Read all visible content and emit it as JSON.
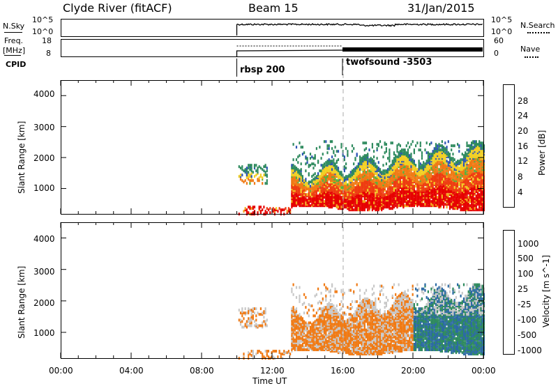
{
  "header": {
    "title": "Clyde River (fitACF)",
    "beam": "Beam 15",
    "date": "31/Jan/2015"
  },
  "strips": {
    "nsky": {
      "label": "N.Sky",
      "right_label": "N.Search",
      "left_ticks": [
        "10^5",
        "10^0"
      ],
      "right_ticks": [
        "10^5",
        "10^0"
      ]
    },
    "freq": {
      "label_line1": "Freq.",
      "label_line2": "[MHz]",
      "right_label": "Nave",
      "left_ticks": [
        "18",
        "8"
      ],
      "right_ticks": [
        "60",
        "0"
      ]
    },
    "cpid": {
      "label": "CPID",
      "segments": [
        {
          "start_hour": 10,
          "label": "rbsp 200"
        },
        {
          "start_hour": 16,
          "label": "twofsound -3503"
        }
      ]
    }
  },
  "chart_data": [
    {
      "type": "heatmap",
      "ylabel": "Slant Range [km]",
      "xlabel": "Time UT",
      "x_ticks": [
        "00:00",
        "04:00",
        "08:00",
        "12:00",
        "16:00",
        "20:00",
        "00:00"
      ],
      "y_ticks": [
        "1000",
        "2000",
        "3000",
        "4000"
      ],
      "xlim_hours": [
        0,
        24
      ],
      "ylim_km": [
        180,
        4500
      ],
      "colorbar_label": "Power [dB]",
      "colorbar_ticks": [
        "4",
        "8",
        "12",
        "16",
        "20",
        "24",
        "28"
      ],
      "colorbar_range": [
        0,
        32
      ],
      "colors": [
        "#0a14e6",
        "#2c55b4",
        "#2e8a5e",
        "#52b23c",
        "#f2d024",
        "#f2a81c",
        "#f07a14",
        "#ee3c10",
        "#e60000"
      ]
    },
    {
      "type": "heatmap",
      "ylabel": "Slant Range [km]",
      "xlabel": "Time UT",
      "x_ticks": [
        "00:00",
        "04:00",
        "08:00",
        "12:00",
        "16:00",
        "20:00",
        "00:00"
      ],
      "y_ticks": [
        "1000",
        "2000",
        "3000",
        "4000"
      ],
      "xlim_hours": [
        0,
        24
      ],
      "ylim_km": [
        180,
        4500
      ],
      "colorbar_label": "Velocity [m s^-1]",
      "colorbar_ticks": [
        "1000",
        "500",
        "100",
        "25",
        "-25",
        "-100",
        "-500",
        "-1000"
      ],
      "colors": [
        "#1e3cc8",
        "#2c6aa4",
        "#2e8a5e",
        "#5ac83c",
        "#c8c8c8",
        "#f2a81c",
        "#f07a14",
        "#ee3c10",
        "#e60000"
      ]
    }
  ]
}
